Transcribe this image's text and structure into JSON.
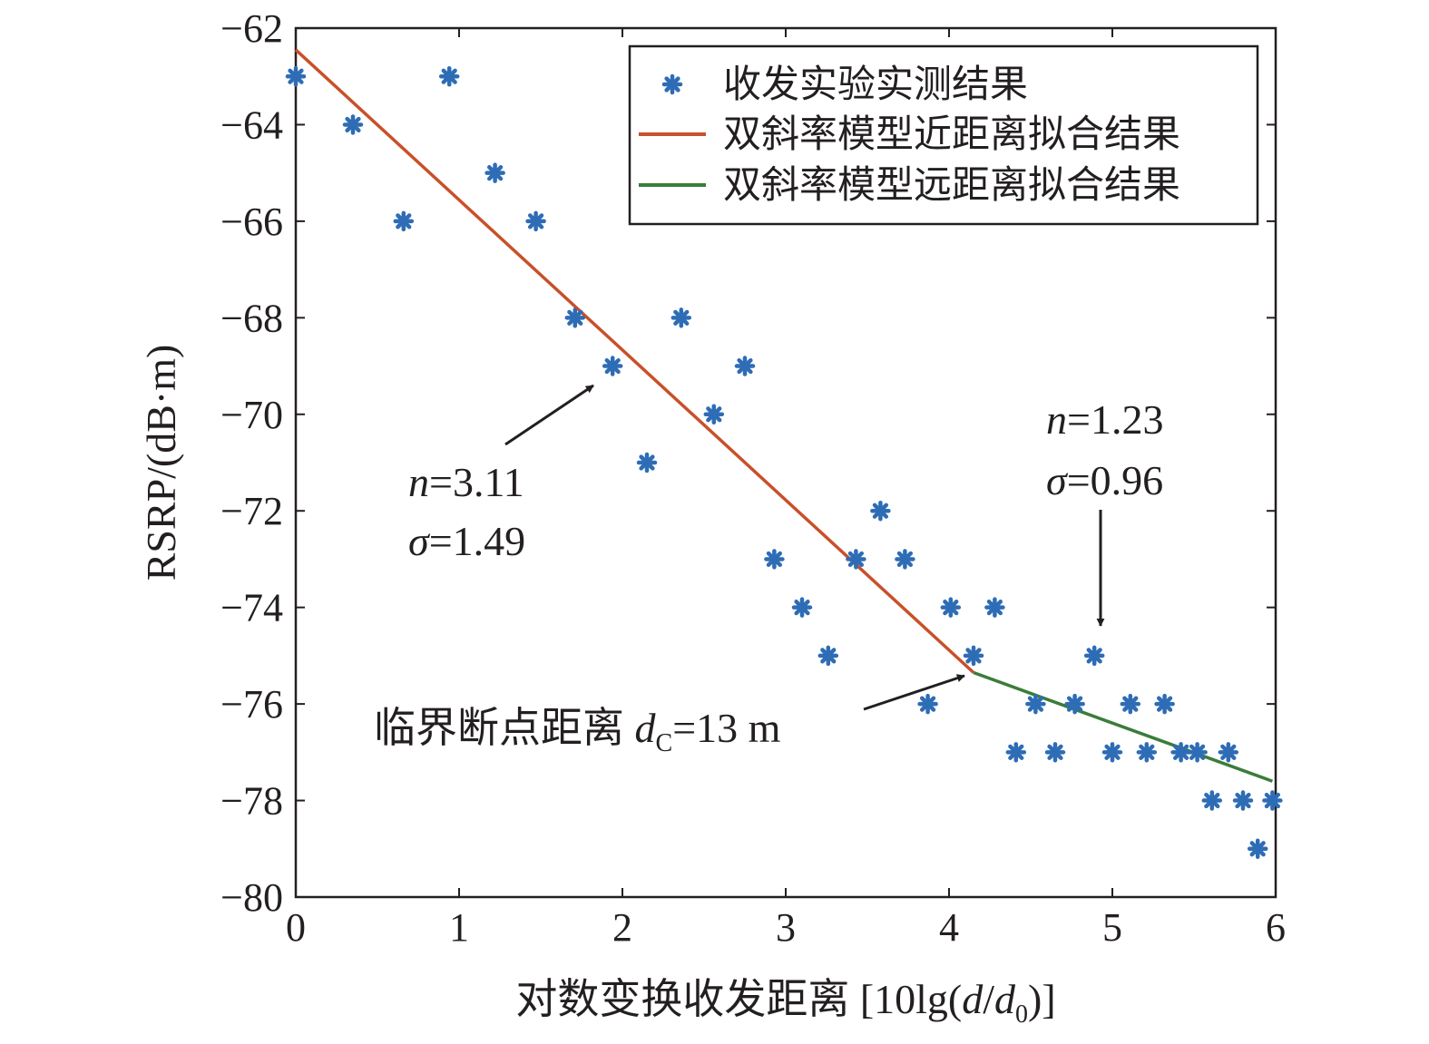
{
  "chart_data": {
    "type": "scatter",
    "xlabel": "对数变换收发距离 [10lg(d/d0)]",
    "xlabel_parts": {
      "prefix": "对数变换收发距离 [10lg(",
      "var1": "d",
      "slash": "/",
      "var2": "d",
      "sub": "0",
      "suffix": ")]"
    },
    "ylabel": "RSRP/(dB·m)",
    "xlim": [
      0,
      6
    ],
    "ylim": [
      -80,
      -62
    ],
    "xticks": [
      0,
      1,
      2,
      3,
      4,
      5,
      6
    ],
    "yticks": [
      -62,
      -64,
      -66,
      -68,
      -70,
      -72,
      -74,
      -76,
      -78,
      -80
    ],
    "ytick_labels": [
      "−62",
      "−64",
      "−66",
      "−68",
      "−70",
      "−72",
      "−74",
      "−76",
      "−78",
      "−80"
    ],
    "grid": false,
    "legend_position": "top-right",
    "colors": {
      "measured": "#2e6db5",
      "near_fit": "#c8502a",
      "far_fit": "#3a7d3a",
      "axis": "#231f20"
    },
    "series": [
      {
        "name": "收发实验实测结果",
        "kind": "scatter",
        "marker": "asterisk",
        "points": [
          [
            0,
            -63
          ],
          [
            0.35,
            -64
          ],
          [
            0.66,
            -66
          ],
          [
            0.94,
            -63
          ],
          [
            1.22,
            -65
          ],
          [
            1.47,
            -66
          ],
          [
            1.71,
            -68
          ],
          [
            1.94,
            -69
          ],
          [
            2.15,
            -71
          ],
          [
            2.36,
            -68
          ],
          [
            2.56,
            -70
          ],
          [
            2.75,
            -69
          ],
          [
            2.93,
            -73
          ],
          [
            3.1,
            -74
          ],
          [
            3.26,
            -75
          ],
          [
            3.43,
            -73
          ],
          [
            3.58,
            -72
          ],
          [
            3.73,
            -73
          ],
          [
            3.87,
            -76
          ],
          [
            4.01,
            -74
          ],
          [
            4.15,
            -75
          ],
          [
            4.28,
            -74
          ],
          [
            4.41,
            -77
          ],
          [
            4.53,
            -76
          ],
          [
            4.65,
            -77
          ],
          [
            4.77,
            -76
          ],
          [
            4.89,
            -75
          ],
          [
            5.0,
            -77
          ],
          [
            5.11,
            -76
          ],
          [
            5.21,
            -77
          ],
          [
            5.32,
            -76
          ],
          [
            5.42,
            -77
          ],
          [
            5.52,
            -77
          ],
          [
            5.61,
            -78
          ],
          [
            5.71,
            -77
          ],
          [
            5.8,
            -78
          ],
          [
            5.89,
            -79
          ],
          [
            5.98,
            -78
          ]
        ]
      },
      {
        "name": "双斜率模型近距离拟合结果",
        "kind": "line",
        "points": [
          [
            0,
            -62.45
          ],
          [
            4.15,
            -75.35
          ]
        ]
      },
      {
        "name": "双斜率模型远距离拟合结果",
        "kind": "line",
        "points": [
          [
            4.15,
            -75.35
          ],
          [
            5.98,
            -77.6
          ]
        ]
      }
    ],
    "annotations": {
      "near": {
        "n_var": "n",
        "n_value": "=3.11",
        "sigma_var": "σ",
        "sigma_value": "=1.49"
      },
      "far": {
        "n_var": "n",
        "n_value": "=1.23",
        "sigma_var": "σ",
        "sigma_value": "=0.96"
      },
      "breakpoint": {
        "prefix": "临界断点距离 ",
        "var": "d",
        "sub": "C",
        "suffix": "=13 m"
      }
    }
  }
}
